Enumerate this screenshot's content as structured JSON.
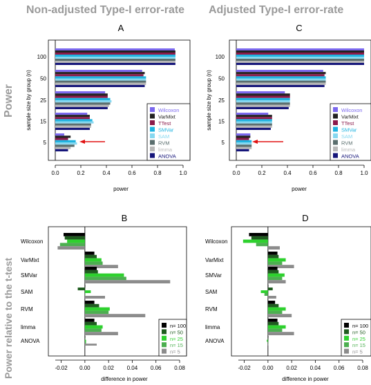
{
  "headers": {
    "left": "Non-adjusted Type-I error-rate",
    "right": "Adjusted Type-I error-rate",
    "row_top": "Power",
    "row_bottom": "Power relative to the t-test"
  },
  "chart_data": [
    {
      "type": "bar",
      "orientation": "horizontal",
      "panel": "A",
      "title": "A",
      "xlabel": "power",
      "ylabel": "sample size by group (n)",
      "categories": [
        "100",
        "50",
        "25",
        "15",
        "5"
      ],
      "xlim": [
        0,
        1
      ],
      "xticks": [
        "0.0",
        "0.2",
        "0.4",
        "0.6",
        "0.8",
        "1.0"
      ],
      "legend": "bottom-right",
      "annotation": "red arrow pointing to n = 5 group",
      "series": [
        {
          "name": "Wilcoxon",
          "color": "#7b68ee",
          "values": [
            0.935,
            0.68,
            0.39,
            0.25,
            0.07
          ]
        },
        {
          "name": "VarMixt",
          "color": "#222222",
          "values": [
            0.94,
            0.7,
            0.41,
            0.27,
            0.12
          ]
        },
        {
          "name": "TTest",
          "color": "#8b1a4a",
          "values": [
            0.94,
            0.69,
            0.41,
            0.27,
            0.1
          ]
        },
        {
          "name": "SMVar",
          "color": "#1fb3e0",
          "values": [
            0.94,
            0.71,
            0.43,
            0.29,
            0.16
          ]
        },
        {
          "name": "SAM",
          "color": "#87d8f0",
          "values": [
            0.94,
            0.71,
            0.44,
            0.3,
            0.17
          ]
        },
        {
          "name": "RVM",
          "color": "#5a6e6e",
          "values": [
            0.94,
            0.71,
            0.43,
            0.28,
            0.15
          ]
        },
        {
          "name": "limma",
          "color": "#b8b8b8",
          "values": [
            0.94,
            0.71,
            0.42,
            0.28,
            0.12
          ]
        },
        {
          "name": "ANOVA",
          "color": "#15157a",
          "values": [
            0.94,
            0.7,
            0.41,
            0.27,
            0.1
          ]
        }
      ]
    },
    {
      "type": "bar",
      "orientation": "horizontal",
      "panel": "C",
      "title": "C",
      "xlabel": "power",
      "ylabel": "sample size by group (n)",
      "categories": [
        "100",
        "50",
        "25",
        "15",
        "5"
      ],
      "xlim": [
        0,
        1
      ],
      "xticks": [
        "0.0",
        "0.2",
        "0.4",
        "0.6",
        "0.8",
        "1.0"
      ],
      "legend": "bottom-right",
      "annotation": "red arrow pointing to n = 5 group",
      "series": [
        {
          "name": "Wilcoxon",
          "color": "#7b68ee",
          "values": [
            1.0,
            0.68,
            0.38,
            0.25,
            0.11
          ]
        },
        {
          "name": "VarMixt",
          "color": "#222222",
          "values": [
            1.0,
            0.7,
            0.42,
            0.28,
            0.11
          ]
        },
        {
          "name": "TTest",
          "color": "#8b1a4a",
          "values": [
            1.0,
            0.69,
            0.42,
            0.28,
            0.1
          ]
        },
        {
          "name": "SMVar",
          "color": "#1fb3e0",
          "values": [
            1.0,
            0.7,
            0.42,
            0.28,
            0.12
          ]
        },
        {
          "name": "SAM",
          "color": "#87d8f0",
          "values": [
            1.0,
            0.7,
            0.42,
            0.28,
            0.12
          ]
        },
        {
          "name": "RVM",
          "color": "#5a6e6e",
          "values": [
            1.0,
            0.7,
            0.42,
            0.28,
            0.12
          ]
        },
        {
          "name": "limma",
          "color": "#b8b8b8",
          "values": [
            1.0,
            0.7,
            0.42,
            0.28,
            0.12
          ]
        },
        {
          "name": "ANOVA",
          "color": "#15157a",
          "values": [
            1.0,
            0.69,
            0.41,
            0.27,
            0.1
          ]
        }
      ]
    },
    {
      "type": "bar",
      "orientation": "horizontal",
      "panel": "B",
      "title": "B",
      "xlabel": "difference in power",
      "categories": [
        "Wilcoxon",
        "VarMixt",
        "SMVar",
        "SAM",
        "RVM",
        "limma",
        "ANOVA"
      ],
      "xlim": [
        -0.025,
        0.08
      ],
      "xticks": [
        "-0.02",
        "0.00",
        "0.02",
        "0.04",
        "0.06",
        "0.08"
      ],
      "legend": "bottom-right",
      "series": [
        {
          "name": "n= 100",
          "color": "#000000",
          "values": [
            -0.018,
            0.008,
            0.01,
            0.0,
            0.008,
            0.008,
            0.0
          ]
        },
        {
          "name": "n= 50",
          "color": "#1f5c1f",
          "values": [
            -0.017,
            0.01,
            0.011,
            -0.006,
            0.012,
            0.01,
            0.0
          ]
        },
        {
          "name": "n= 25",
          "color": "#2ed12e",
          "values": [
            -0.015,
            0.014,
            0.033,
            0.005,
            0.021,
            0.015,
            0.001
          ]
        },
        {
          "name": "n= 15",
          "color": "#4caf50",
          "values": [
            -0.021,
            0.015,
            0.035,
            0.0,
            0.02,
            0.014,
            0.001
          ]
        },
        {
          "name": "n= 5",
          "color": "#8c8c8c",
          "values": [
            -0.023,
            0.028,
            0.072,
            0.017,
            0.051,
            0.028,
            0.01
          ]
        }
      ]
    },
    {
      "type": "bar",
      "orientation": "horizontal",
      "panel": "D",
      "title": "D",
      "xlabel": "difference in power",
      "categories": [
        "Wilcoxon",
        "VarMixt",
        "SMVar",
        "SAM",
        "RVM",
        "limma",
        "ANOVA"
      ],
      "xlim": [
        -0.025,
        0.08
      ],
      "xticks": [
        "-0.02",
        "0.00",
        "0.02",
        "0.04",
        "0.06",
        "0.08"
      ],
      "legend": "bottom-right",
      "series": [
        {
          "name": "n= 100",
          "color": "#000000",
          "values": [
            -0.016,
            0.008,
            0.008,
            0.0,
            0.006,
            0.008,
            0.0
          ]
        },
        {
          "name": "n= 50",
          "color": "#1f5c1f",
          "values": [
            -0.014,
            0.009,
            0.009,
            0.004,
            0.009,
            0.009,
            0.0
          ]
        },
        {
          "name": "n= 25",
          "color": "#2ed12e",
          "values": [
            -0.021,
            0.015,
            0.014,
            -0.006,
            0.015,
            0.015,
            -0.001
          ]
        },
        {
          "name": "n= 15",
          "color": "#4caf50",
          "values": [
            -0.01,
            0.012,
            0.012,
            -0.003,
            0.012,
            0.012,
            0.0
          ]
        },
        {
          "name": "n= 5",
          "color": "#8c8c8c",
          "values": [
            0.01,
            0.022,
            0.015,
            0.007,
            0.02,
            0.022,
            0.0
          ]
        }
      ]
    }
  ]
}
